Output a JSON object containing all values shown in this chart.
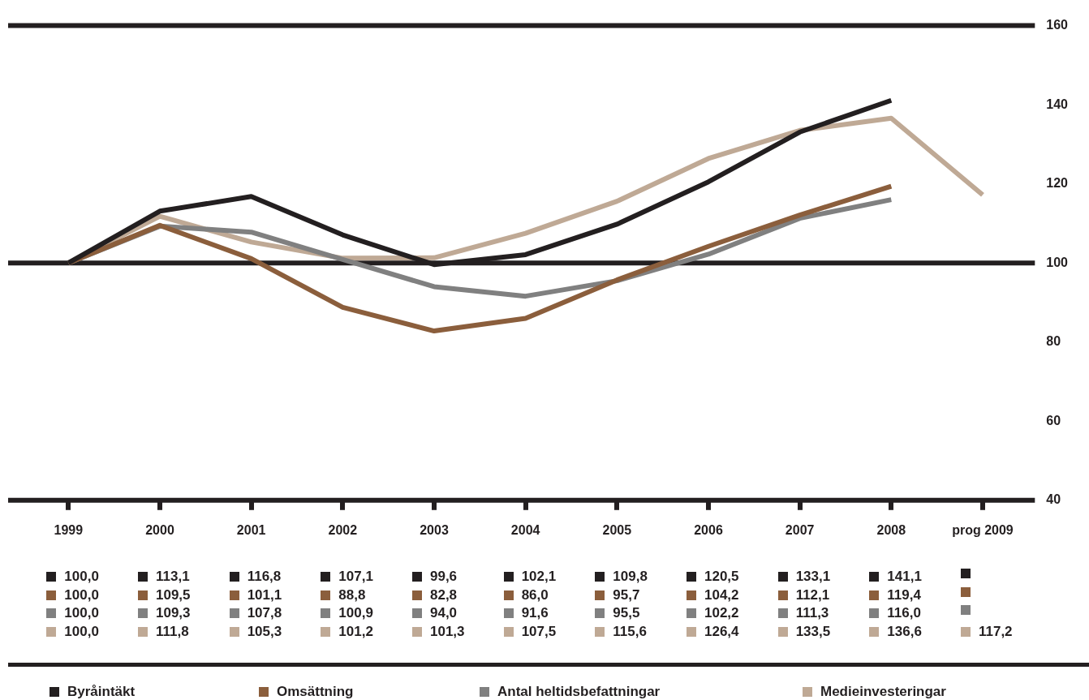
{
  "chart_data": {
    "type": "line",
    "categories": [
      "1999",
      "2000",
      "2001",
      "2002",
      "2003",
      "2004",
      "2005",
      "2006",
      "2007",
      "2008",
      "prog 2009"
    ],
    "series": [
      {
        "name": "Byråintäkt",
        "color": "#231f20",
        "values": [
          100.0,
          113.1,
          116.8,
          107.1,
          99.6,
          102.1,
          109.8,
          120.5,
          133.1,
          141.1,
          null
        ],
        "value_labels": [
          "100,0",
          "113,1",
          "116,8",
          "107,1",
          "99,6",
          "102,1",
          "109,8",
          "120,5",
          "133,1",
          "141,1",
          null
        ]
      },
      {
        "name": "Omsättning",
        "color": "#8b5e3c",
        "values": [
          100.0,
          109.5,
          101.1,
          88.8,
          82.8,
          86.0,
          95.7,
          104.2,
          112.1,
          119.4,
          null
        ],
        "value_labels": [
          "100,0",
          "109,5",
          "101,1",
          "88,8",
          "82,8",
          "86,0",
          "95,7",
          "104,2",
          "112,1",
          "119,4",
          null
        ]
      },
      {
        "name": "Antal heltidsbefattningar",
        "color": "#808080",
        "values": [
          100.0,
          109.3,
          107.8,
          100.9,
          94.0,
          91.6,
          95.5,
          102.2,
          111.3,
          116.0,
          null
        ],
        "value_labels": [
          "100,0",
          "109,3",
          "107,8",
          "100,9",
          "94,0",
          "91,6",
          "95,5",
          "102,2",
          "111,3",
          "116,0",
          null
        ]
      },
      {
        "name": "Medieinvesteringar",
        "color": "#bfa995",
        "values": [
          100.0,
          111.8,
          105.3,
          101.2,
          101.3,
          107.5,
          115.6,
          126.4,
          133.5,
          136.6,
          117.2
        ],
        "value_labels": [
          "100,0",
          "111,8",
          "105,3",
          "101,2",
          "101,3",
          "107,5",
          "115,6",
          "126,4",
          "133,5",
          "136,6",
          "117,2"
        ]
      }
    ],
    "ylim": [
      40,
      160
    ],
    "yticks": [
      40,
      60,
      80,
      100,
      120,
      140,
      160
    ],
    "grid": false,
    "ref_lines": [
      {
        "axis": "y",
        "value": 100
      }
    ],
    "legend": "bottom",
    "marker": "none",
    "line_style": "solid"
  }
}
